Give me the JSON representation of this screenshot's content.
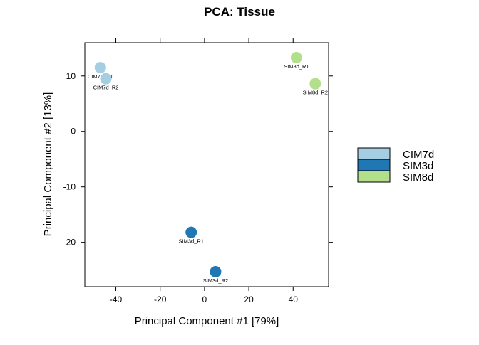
{
  "chart_data": {
    "type": "scatter",
    "title": "PCA: Tissue",
    "xlabel": "Principal Component #1 [79%]",
    "ylabel": "Principal Component #2 [13%]",
    "xlim": [
      -54,
      56
    ],
    "ylim": [
      -28,
      16
    ],
    "xticks": [
      -40,
      -20,
      0,
      20,
      40
    ],
    "yticks": [
      -20,
      -10,
      0,
      10
    ],
    "grid": false,
    "legend_position": "right",
    "series": [
      {
        "name": "CIM7d",
        "color": "#A6CEE3",
        "points": [
          {
            "x": -47,
            "y": 11.5,
            "label": "CIM7d_R1"
          },
          {
            "x": -44.5,
            "y": 9.5,
            "label": "CIM7d_R2"
          }
        ]
      },
      {
        "name": "SIM3d",
        "color": "#1F78B4",
        "points": [
          {
            "x": -6,
            "y": -18.2,
            "label": "SIM3d_R1"
          },
          {
            "x": 5,
            "y": -25.3,
            "label": "SIM3d_R2"
          }
        ]
      },
      {
        "name": "SIM8d",
        "color": "#B2DF8A",
        "points": [
          {
            "x": 41.5,
            "y": 13.3,
            "label": "SIM8d_R1"
          },
          {
            "x": 50,
            "y": 8.6,
            "label": "SIM8d_R2"
          }
        ]
      }
    ]
  }
}
